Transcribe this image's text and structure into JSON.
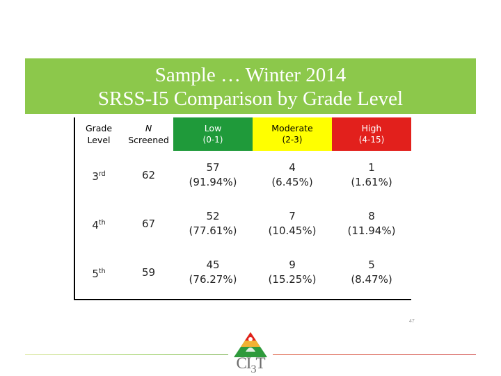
{
  "title": {
    "line1": "Sample … Winter 2014",
    "line2": "SRSS-I5  Comparison by Grade Level"
  },
  "table": {
    "headers": {
      "grade": [
        "Grade",
        "Level"
      ],
      "n": [
        "N",
        "Screened"
      ],
      "low": [
        "Low",
        "(0-1)"
      ],
      "moderate": [
        "Moderate",
        "(2-3)"
      ],
      "high": [
        "High",
        "(4-15)"
      ]
    },
    "rows": [
      {
        "grade_num": "3",
        "grade_sup": "rd",
        "n": "62",
        "low": [
          "57",
          "(91.94%)"
        ],
        "moderate": [
          "4",
          "(6.45%)"
        ],
        "high": [
          "1",
          "(1.61%)"
        ]
      },
      {
        "grade_num": "4",
        "grade_sup": "th",
        "n": "67",
        "low": [
          "52",
          "(77.61%)"
        ],
        "moderate": [
          "7",
          "(10.45%)"
        ],
        "high": [
          "8",
          "(11.94%)"
        ]
      },
      {
        "grade_num": "5",
        "grade_sup": "th",
        "n": "59",
        "low": [
          "45",
          "(76.27%)"
        ],
        "moderate": [
          "9",
          "(15.25%)"
        ],
        "high": [
          "5",
          "(8.47%)"
        ]
      }
    ]
  },
  "page_number": "47",
  "logo": {
    "text": "CI",
    "sub": "3",
    "tail": "T"
  },
  "colors": {
    "banner": "#8cc84b",
    "low": "#1f9a3a",
    "moderate": "#ffff00",
    "high": "#e2201c"
  }
}
